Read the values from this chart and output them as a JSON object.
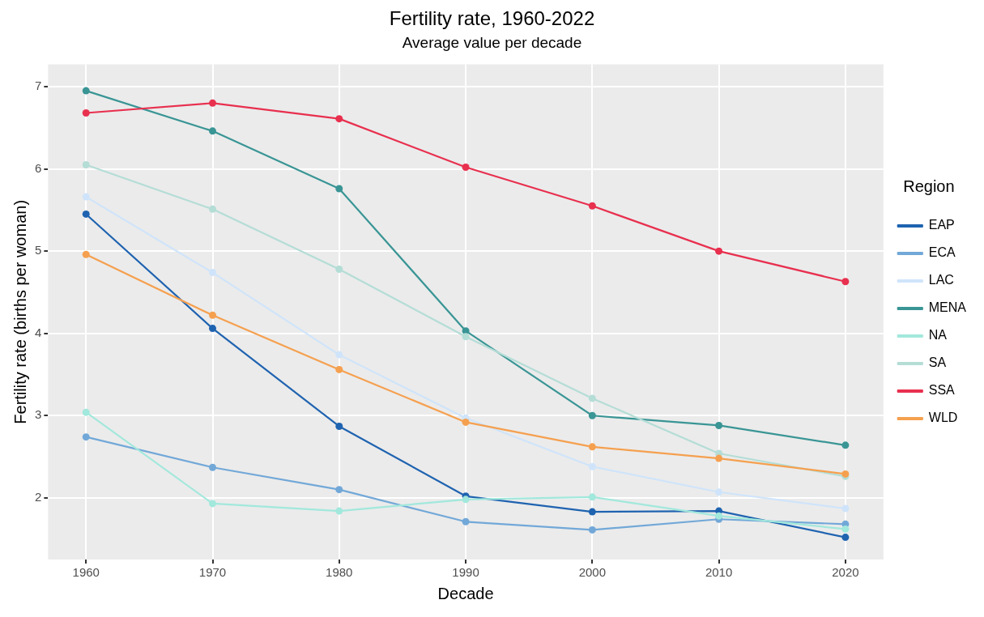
{
  "chart_data": {
    "type": "line",
    "title": "Fertility rate, 1960-2022",
    "subtitle": "Average value per decade",
    "xlabel": "Decade",
    "ylabel": "Fertility rate (births per woman)",
    "legend_title": "Region",
    "x": [
      1960,
      1970,
      1980,
      1990,
      2000,
      2010,
      2020
    ],
    "series": [
      {
        "name": "EAP",
        "color": "#1f63b0",
        "values": [
          5.45,
          4.06,
          2.87,
          2.02,
          1.83,
          1.84,
          1.52
        ]
      },
      {
        "name": "ECA",
        "color": "#72a8d8",
        "values": [
          2.74,
          2.37,
          2.1,
          1.71,
          1.61,
          1.74,
          1.68
        ]
      },
      {
        "name": "LAC",
        "color": "#cfe4fa",
        "values": [
          5.66,
          4.74,
          3.74,
          2.97,
          2.38,
          2.07,
          1.87
        ]
      },
      {
        "name": "MENA",
        "color": "#3a9595",
        "values": [
          6.95,
          6.46,
          5.76,
          4.03,
          3.0,
          2.88,
          2.64
        ]
      },
      {
        "name": "NA",
        "color": "#a2e8dc",
        "values": [
          3.04,
          1.93,
          1.84,
          1.98,
          2.01,
          1.78,
          1.62
        ]
      },
      {
        "name": "SA",
        "color": "#b4ddd6",
        "values": [
          6.05,
          5.51,
          4.78,
          3.96,
          3.21,
          2.54,
          2.26
        ]
      },
      {
        "name": "SSA",
        "color": "#e8304f",
        "values": [
          6.68,
          6.8,
          6.61,
          6.02,
          5.55,
          5.0,
          4.63
        ]
      },
      {
        "name": "WLD",
        "color": "#f5a04f",
        "values": [
          4.96,
          4.22,
          3.56,
          2.92,
          2.62,
          2.48,
          2.29
        ]
      }
    ],
    "xlim": [
      1957,
      2023
    ],
    "xticks": [
      1960,
      1970,
      1980,
      1990,
      2000,
      2010,
      2020
    ],
    "ylim": [
      1.25,
      7.27
    ],
    "yticks": [
      2,
      3,
      4,
      5,
      6,
      7
    ],
    "grid": true,
    "legend": "right",
    "marker": "circle",
    "line_style": "solid"
  }
}
